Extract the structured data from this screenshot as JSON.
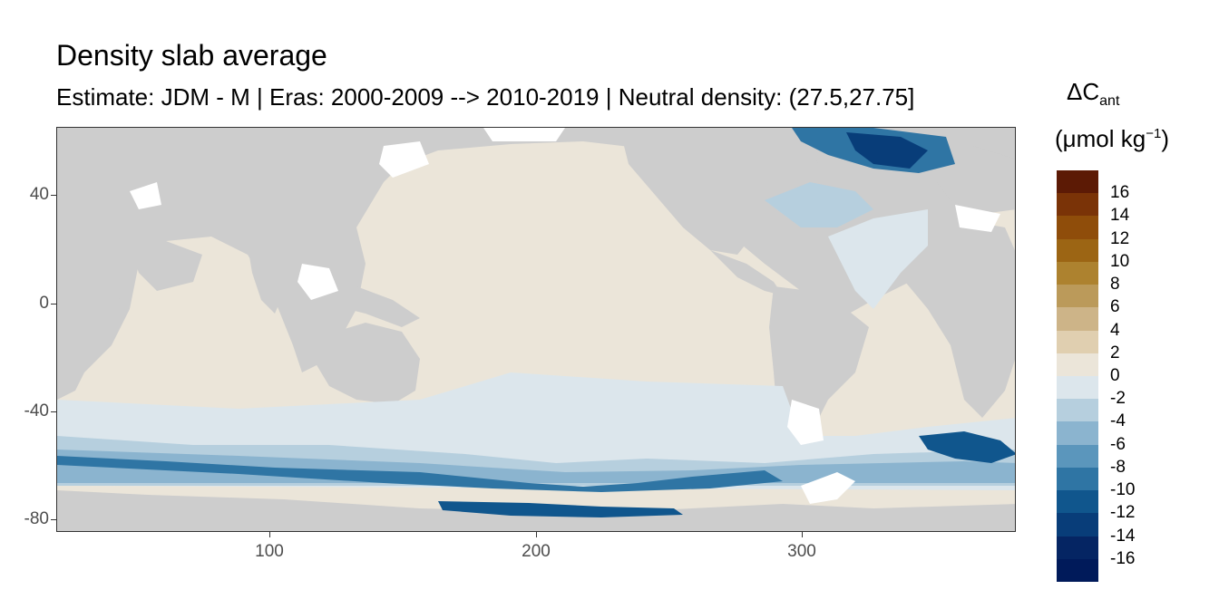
{
  "title": "Density slab average",
  "subtitle": "Estimate: JDM - M | Eras: 2000-2009 --> 2010-2019 | Neutral density: (27.5,27.75]",
  "y_axis": {
    "ticks": [
      "40",
      "0",
      "-40",
      "-80"
    ],
    "values": [
      40,
      0,
      -40,
      -80
    ],
    "range": [
      -85,
      65
    ]
  },
  "x_axis": {
    "ticks": [
      "100",
      "200",
      "300"
    ],
    "values": [
      100,
      200,
      300
    ],
    "range": [
      20,
      380
    ]
  },
  "legend": {
    "title_main": "ΔC",
    "title_sub": "ant",
    "units_prefix": "(μmol kg",
    "units_sup": "−1",
    "units_suffix": ")",
    "labels": [
      "16",
      "14",
      "12",
      "10",
      "8",
      "6",
      "4",
      "2",
      "0",
      "-2",
      "-4",
      "-6",
      "-8",
      "-10",
      "-12",
      "-14",
      "-16"
    ],
    "colors": [
      "#5c1a05",
      "#7a3307",
      "#8f4d0a",
      "#9c6514",
      "#ad822f",
      "#bb9a5a",
      "#cdb488",
      "#e0cfb0",
      "#ebe5d9",
      "#dce6ec",
      "#b6cfde",
      "#8bb4cf",
      "#5b96bc",
      "#2f75a4",
      "#10568d",
      "#083d79",
      "#052563",
      "#001a5a"
    ]
  },
  "colors": {
    "land": "#cdcdcd",
    "no_data": "#ffffff",
    "near_zero_pos": "#ebe5d9",
    "near_zero_neg": "#dce6ec"
  }
}
